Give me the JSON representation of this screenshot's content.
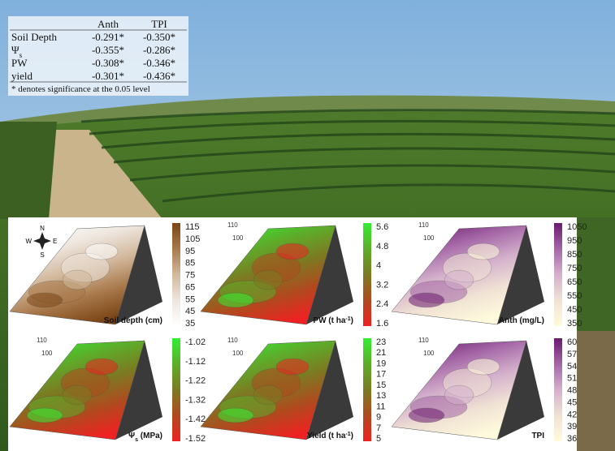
{
  "table": {
    "header": [
      "Anth",
      "TPI"
    ],
    "rows": [
      {
        "name": [
          {
            "text": "Soil Depth"
          }
        ],
        "values": [
          "-0.291*",
          "-0.350*"
        ]
      },
      {
        "name": [
          {
            "text": "Ψ"
          },
          {
            "sub": "s"
          }
        ],
        "values": [
          "-0.355*",
          "-0.286*"
        ]
      },
      {
        "name": [
          {
            "text": "PW"
          }
        ],
        "values": [
          "-0.308*",
          "-0.346*"
        ]
      },
      {
        "name": [
          {
            "text": "yield"
          }
        ],
        "values": [
          "-0.301*",
          "-0.436*"
        ]
      }
    ],
    "note": "* denotes significance at the 0.05 level"
  },
  "compass": {
    "n": "N",
    "e": "E",
    "s": "S",
    "w": "W"
  },
  "panels": [
    {
      "label": [
        {
          "text": "Soil depth (cm)"
        }
      ],
      "ticks": [
        115,
        105,
        95,
        85,
        75,
        65,
        55,
        45,
        35
      ],
      "colors": [
        "#7a4516",
        "#a8784a",
        "#d2b89c",
        "#eee6de",
        "#ffffff"
      ]
    },
    {
      "label": [
        {
          "text": "PW (t ha"
        },
        {
          "sup": "-1"
        },
        {
          "text": ")"
        }
      ],
      "axis_labels": [
        110,
        100
      ],
      "ticks": [
        5.6,
        4.8,
        4,
        3.2,
        2.4,
        1.6
      ],
      "colors": [
        "#33ee33",
        "#5cae2a",
        "#7c7a22",
        "#b04a1e",
        "#ee2222"
      ]
    },
    {
      "label": [
        {
          "text": "Anth (mg/L)"
        }
      ],
      "axis_labels": [
        110,
        100
      ],
      "ticks": [
        1050,
        950,
        850,
        750,
        650,
        550,
        450,
        350
      ],
      "colors": [
        "#6a1a6e",
        "#a466a6",
        "#d4b0cc",
        "#f0e2d4",
        "#fffbdc"
      ]
    },
    {
      "label": [
        {
          "text": "Ψ"
        },
        {
          "sub": "s"
        },
        {
          "text": " (MPa)"
        }
      ],
      "axis_labels": [
        110,
        100
      ],
      "ticks": [
        -1.02,
        -1.12,
        -1.22,
        -1.32,
        -1.42,
        -1.52
      ],
      "colors": [
        "#33ee33",
        "#5cae2a",
        "#7c7a22",
        "#b04a1e",
        "#ee2222"
      ]
    },
    {
      "label": [
        {
          "text": "Yield (t ha"
        },
        {
          "sup": "-1"
        },
        {
          "text": ")"
        }
      ],
      "axis_labels": [
        110,
        100
      ],
      "ticks": [
        23,
        21,
        19,
        17,
        15,
        13,
        11,
        9,
        7,
        5
      ],
      "colors": [
        "#33ee33",
        "#5cae2a",
        "#7c7a22",
        "#b04a1e",
        "#ee2222"
      ]
    },
    {
      "label": [
        {
          "text": "TPI"
        }
      ],
      "axis_labels": [
        110,
        100
      ],
      "ticks": [
        60,
        57,
        54,
        51,
        48,
        45,
        42,
        39,
        36
      ],
      "colors": [
        "#6a1a6e",
        "#a466a6",
        "#d4b0cc",
        "#f0e2d4",
        "#fffbdc"
      ]
    }
  ]
}
